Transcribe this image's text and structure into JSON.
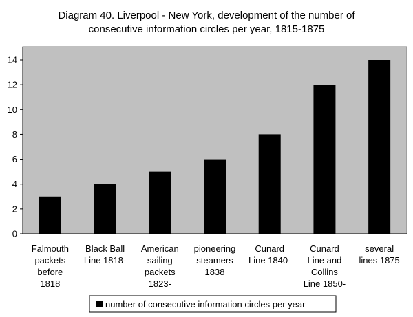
{
  "chart_data": {
    "type": "bar",
    "title_lines": [
      "Diagram 40. Liverpool - New York, development of the number of",
      "consecutive information circles per year, 1815-1875"
    ],
    "categories": [
      [
        "Falmouth",
        "packets",
        "before",
        "1818"
      ],
      [
        "Black Ball",
        "Line 1818-"
      ],
      [
        "American",
        "sailing",
        "packets",
        "1823-"
      ],
      [
        "pioneering",
        "steamers",
        "1838"
      ],
      [
        "Cunard",
        "Line 1840-"
      ],
      [
        "Cunard",
        "Line and",
        "Collins",
        "Line 1850-"
      ],
      [
        "several",
        "lines 1875"
      ]
    ],
    "series": [
      {
        "name": "number of consecutive information circles per year",
        "values": [
          3,
          4,
          5,
          6,
          8,
          12,
          14
        ],
        "color": "#000000"
      }
    ],
    "ylim": [
      0,
      14
    ],
    "yticks": [
      0,
      2,
      4,
      6,
      8,
      10,
      12,
      14
    ],
    "plot_background": "#c0c0c0",
    "grid": false,
    "legend_position": "bottom"
  }
}
